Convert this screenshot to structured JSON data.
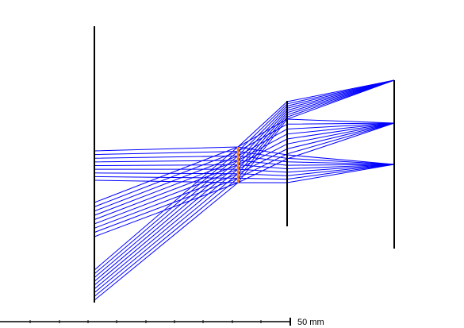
{
  "scale_bar": {
    "label": "50 mm"
  },
  "colors": {
    "rays": "#0000ff",
    "element": "#ff8000",
    "planes": "#000000"
  },
  "ray_bundles": [
    {
      "name_key": "field-top",
      "count": 9
    },
    {
      "name_key": "field-middle",
      "count": 9
    },
    {
      "name_key": "field-bottom",
      "count": 9
    }
  ]
}
